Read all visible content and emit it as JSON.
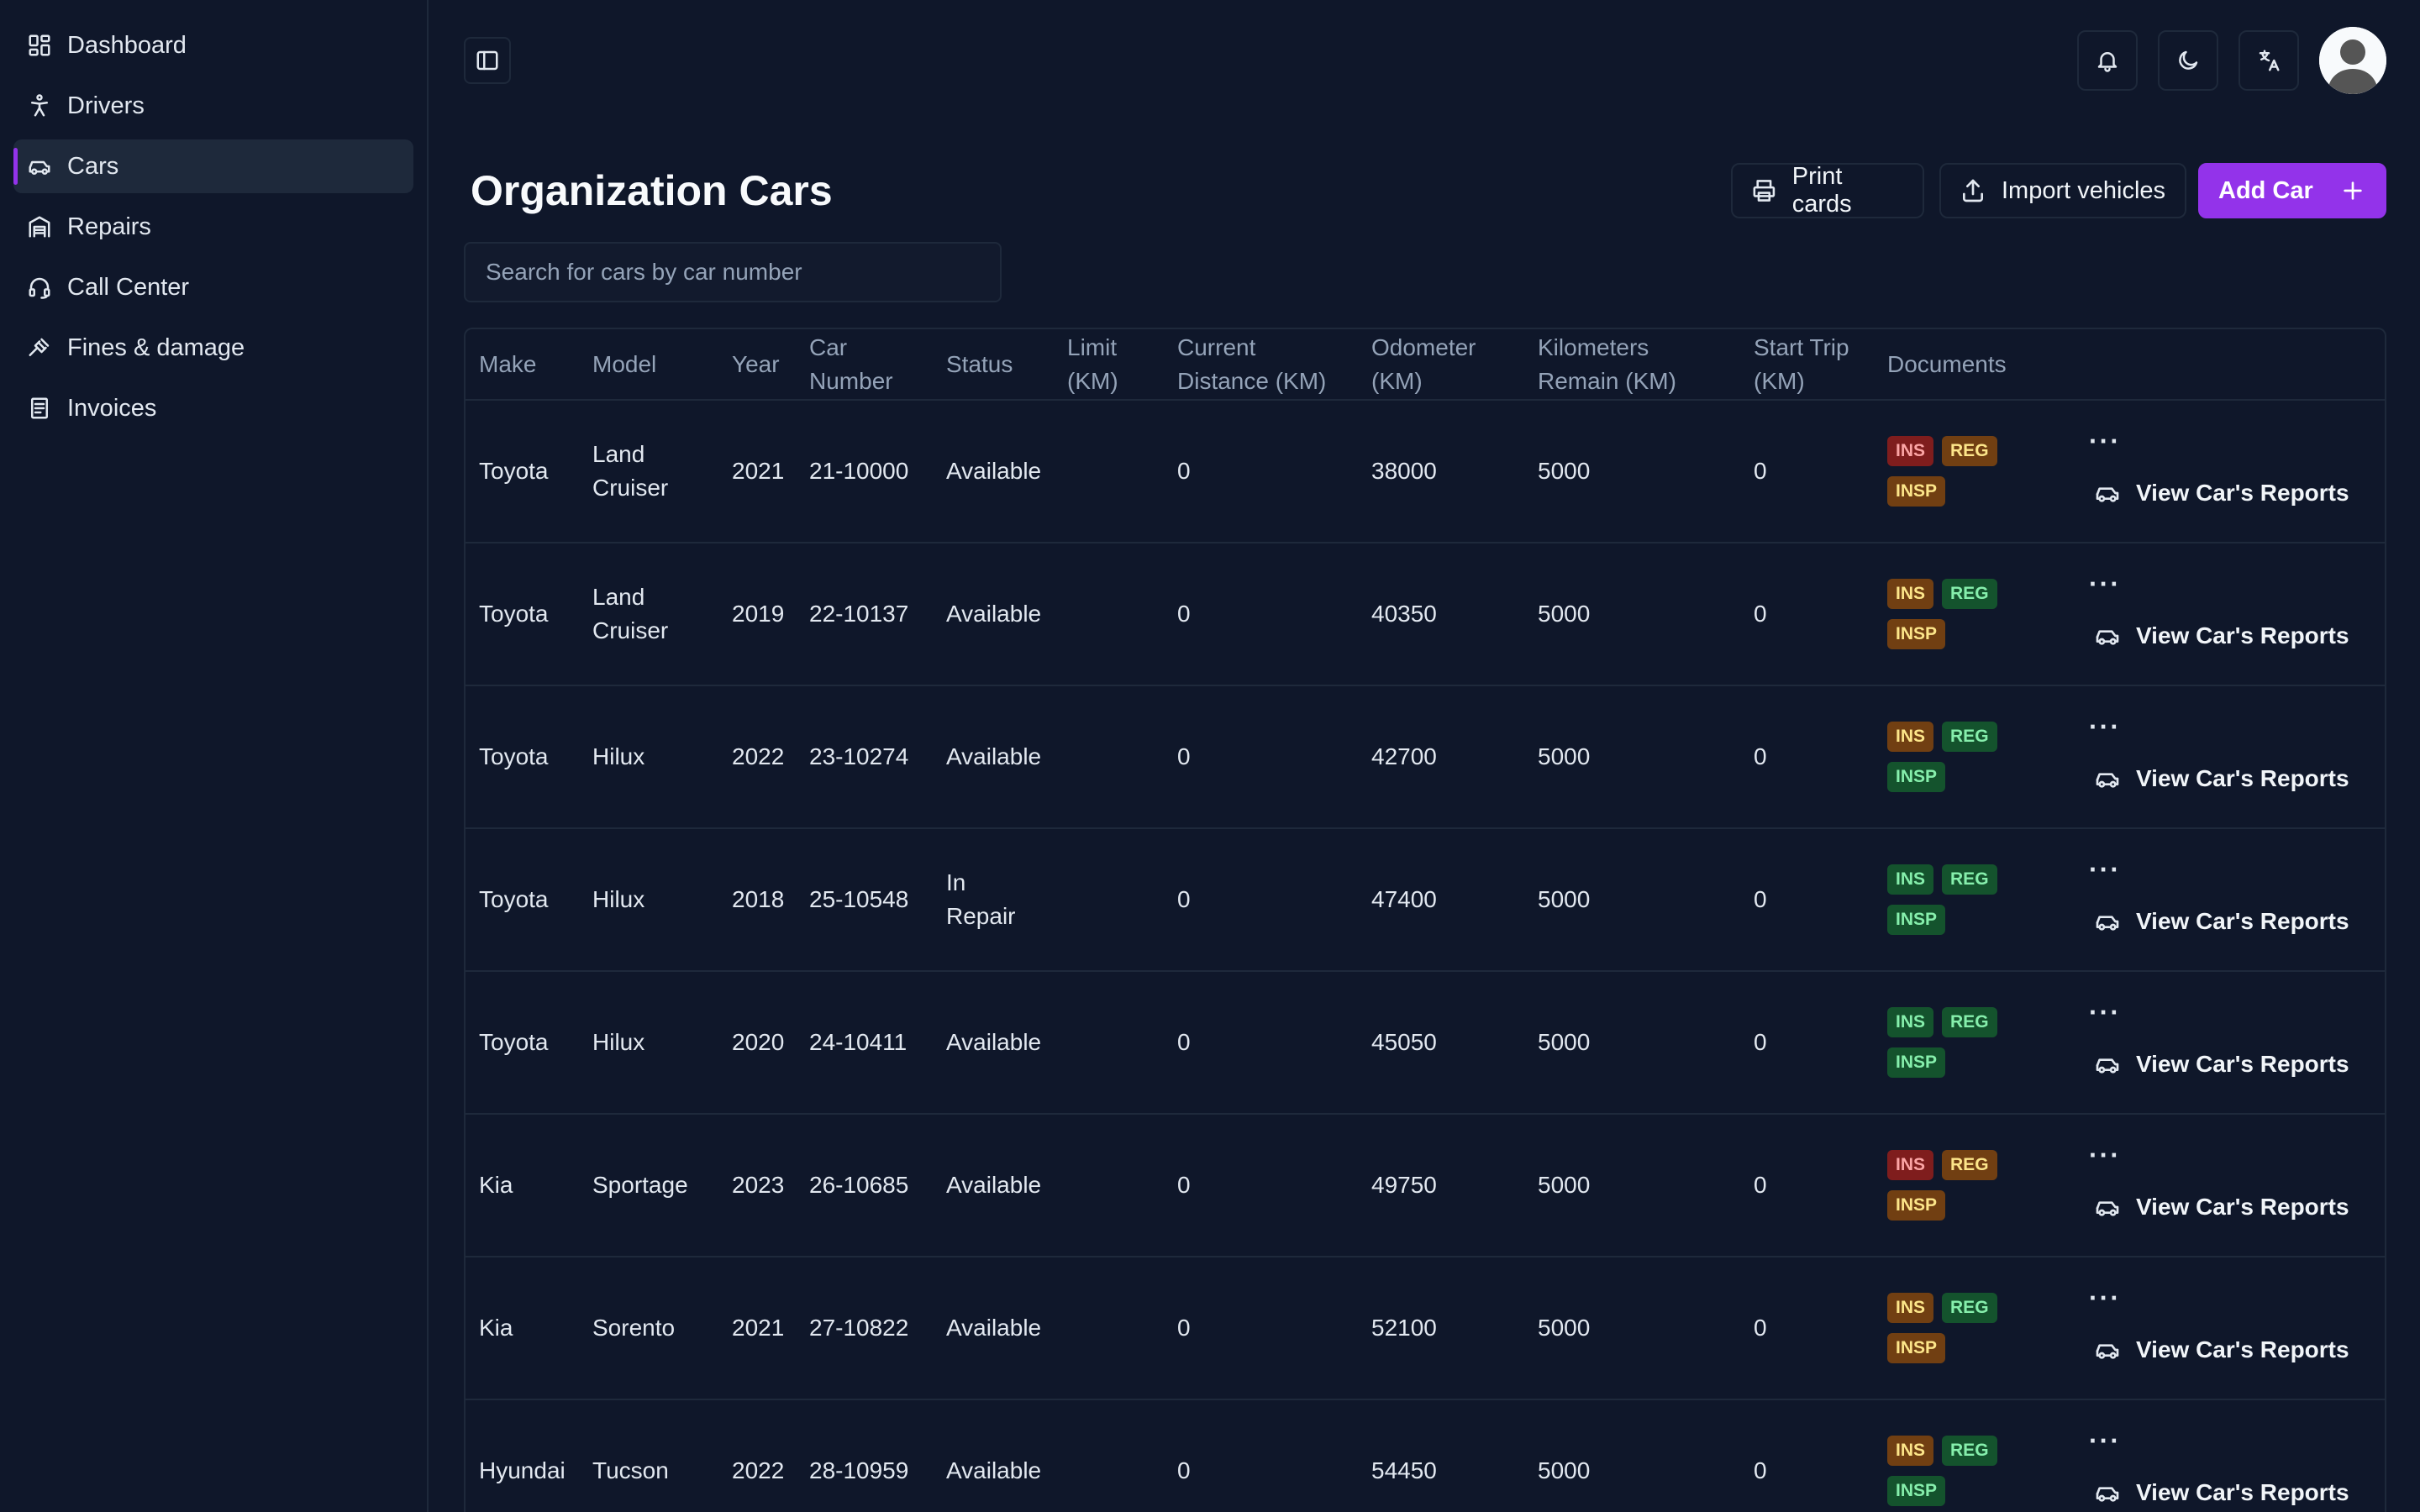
{
  "sidebar": {
    "items": [
      {
        "label": "Dashboard",
        "icon": "dashboard-icon"
      },
      {
        "label": "Drivers",
        "icon": "person-icon"
      },
      {
        "label": "Cars",
        "icon": "car-icon",
        "active": true
      },
      {
        "label": "Repairs",
        "icon": "garage-icon"
      },
      {
        "label": "Call Center",
        "icon": "headset-icon"
      },
      {
        "label": "Fines & damage",
        "icon": "gavel-icon"
      },
      {
        "label": "Invoices",
        "icon": "invoice-icon"
      }
    ]
  },
  "header": {
    "title": "Organization Cars",
    "print_label": "Print cards",
    "import_label": "Import vehicles",
    "add_label": "Add Car"
  },
  "search": {
    "placeholder": "Search for cars by car number",
    "value": ""
  },
  "table": {
    "columns": [
      "Make",
      "Model",
      "Year",
      "Car Number",
      "Status",
      "Limit (KM)",
      "Current Distance (KM)",
      "Odometer (KM)",
      "Kilometers Remain (KM)",
      "Start Trip (KM)",
      "Documents",
      ""
    ],
    "report_label": "View Car's Reports",
    "more_label": "···",
    "rows": [
      {
        "make": "Toyota",
        "model": "Land Cruiser",
        "year": "2021",
        "number": "21-10000",
        "status": "Available",
        "limit": "",
        "current": "0",
        "odometer": "38000",
        "remain": "5000",
        "start": "0",
        "docs": {
          "ins": "red",
          "reg": "amber",
          "insp": "amber"
        }
      },
      {
        "make": "Toyota",
        "model": "Land Cruiser",
        "year": "2019",
        "number": "22-10137",
        "status": "Available",
        "limit": "",
        "current": "0",
        "odometer": "40350",
        "remain": "5000",
        "start": "0",
        "docs": {
          "ins": "amber",
          "reg": "green",
          "insp": "amber"
        }
      },
      {
        "make": "Toyota",
        "model": "Hilux",
        "year": "2022",
        "number": "23-10274",
        "status": "Available",
        "limit": "",
        "current": "0",
        "odometer": "42700",
        "remain": "5000",
        "start": "0",
        "docs": {
          "ins": "amber",
          "reg": "green",
          "insp": "green"
        }
      },
      {
        "make": "Toyota",
        "model": "Hilux",
        "year": "2018",
        "number": "25-10548",
        "status": "In Repair",
        "limit": "",
        "current": "0",
        "odometer": "47400",
        "remain": "5000",
        "start": "0",
        "docs": {
          "ins": "green",
          "reg": "green",
          "insp": "green"
        }
      },
      {
        "make": "Toyota",
        "model": "Hilux",
        "year": "2020",
        "number": "24-10411",
        "status": "Available",
        "limit": "",
        "current": "0",
        "odometer": "45050",
        "remain": "5000",
        "start": "0",
        "docs": {
          "ins": "green",
          "reg": "green",
          "insp": "green"
        }
      },
      {
        "make": "Kia",
        "model": "Sportage",
        "year": "2023",
        "number": "26-10685",
        "status": "Available",
        "limit": "",
        "current": "0",
        "odometer": "49750",
        "remain": "5000",
        "start": "0",
        "docs": {
          "ins": "red",
          "reg": "amber",
          "insp": "amber"
        }
      },
      {
        "make": "Kia",
        "model": "Sorento",
        "year": "2021",
        "number": "27-10822",
        "status": "Available",
        "limit": "",
        "current": "0",
        "odometer": "52100",
        "remain": "5000",
        "start": "0",
        "docs": {
          "ins": "amber",
          "reg": "green",
          "insp": "amber"
        }
      },
      {
        "make": "Hyundai",
        "model": "Tucson",
        "year": "2022",
        "number": "28-10959",
        "status": "Available",
        "limit": "",
        "current": "0",
        "odometer": "54450",
        "remain": "5000",
        "start": "0",
        "docs": {
          "ins": "amber",
          "reg": "green",
          "insp": "green"
        }
      }
    ],
    "doc_labels": {
      "ins": "INS",
      "reg": "REG",
      "insp": "INSP"
    }
  },
  "colors": {
    "accent": "#9333ea",
    "background": "#0f172a",
    "border": "#1e293b",
    "tag_red": "#7f1d1d",
    "tag_amber": "#713f12",
    "tag_green": "#14532d"
  }
}
